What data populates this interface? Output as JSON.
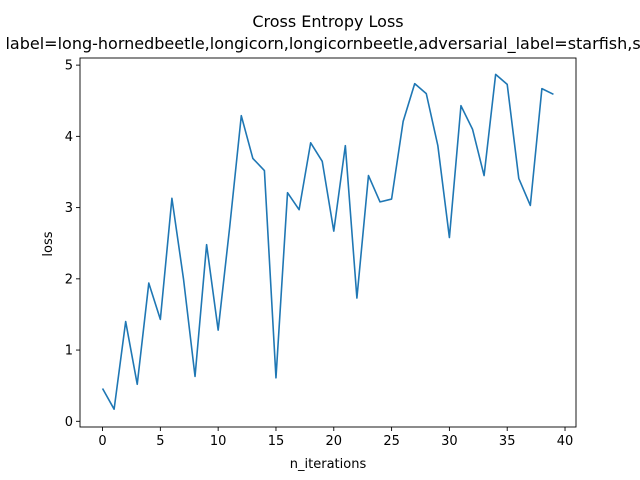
{
  "chart_data": {
    "type": "line",
    "title": "Cross Entropy Loss",
    "subtitle": "label=long-hornedbeetle,longicorn,longicornbeetle,adversarial_label=starfish,se",
    "xlabel": "n_iterations",
    "ylabel": "loss",
    "xlim": [
      -1.95,
      40.95
    ],
    "ylim": [
      -0.08,
      5.1
    ],
    "x_ticks": [
      0,
      5,
      10,
      15,
      20,
      25,
      30,
      35,
      40
    ],
    "y_ticks": [
      0,
      1,
      2,
      3,
      4,
      5
    ],
    "grid": false,
    "color": "#1f77b4",
    "series": [
      {
        "x": [
          0,
          1,
          2,
          3,
          4,
          5,
          6,
          7,
          8,
          9,
          10,
          11,
          12,
          13,
          14,
          15,
          16,
          17,
          18,
          19,
          20,
          21,
          22,
          23,
          24,
          25,
          26,
          27,
          28,
          29,
          30,
          31,
          32,
          33,
          34,
          35,
          36,
          37,
          38,
          39
        ],
        "values": [
          0.46,
          0.17,
          1.4,
          0.52,
          1.94,
          1.43,
          3.13,
          2.0,
          0.63,
          2.48,
          1.28,
          2.73,
          4.29,
          3.69,
          3.52,
          0.61,
          3.21,
          2.97,
          3.91,
          3.65,
          2.67,
          3.87,
          1.73,
          3.45,
          3.08,
          3.12,
          4.21,
          4.74,
          4.6,
          3.87,
          2.58,
          4.43,
          4.1,
          3.45,
          4.87,
          4.73,
          3.41,
          3.03,
          4.67,
          4.59
        ]
      }
    ]
  }
}
